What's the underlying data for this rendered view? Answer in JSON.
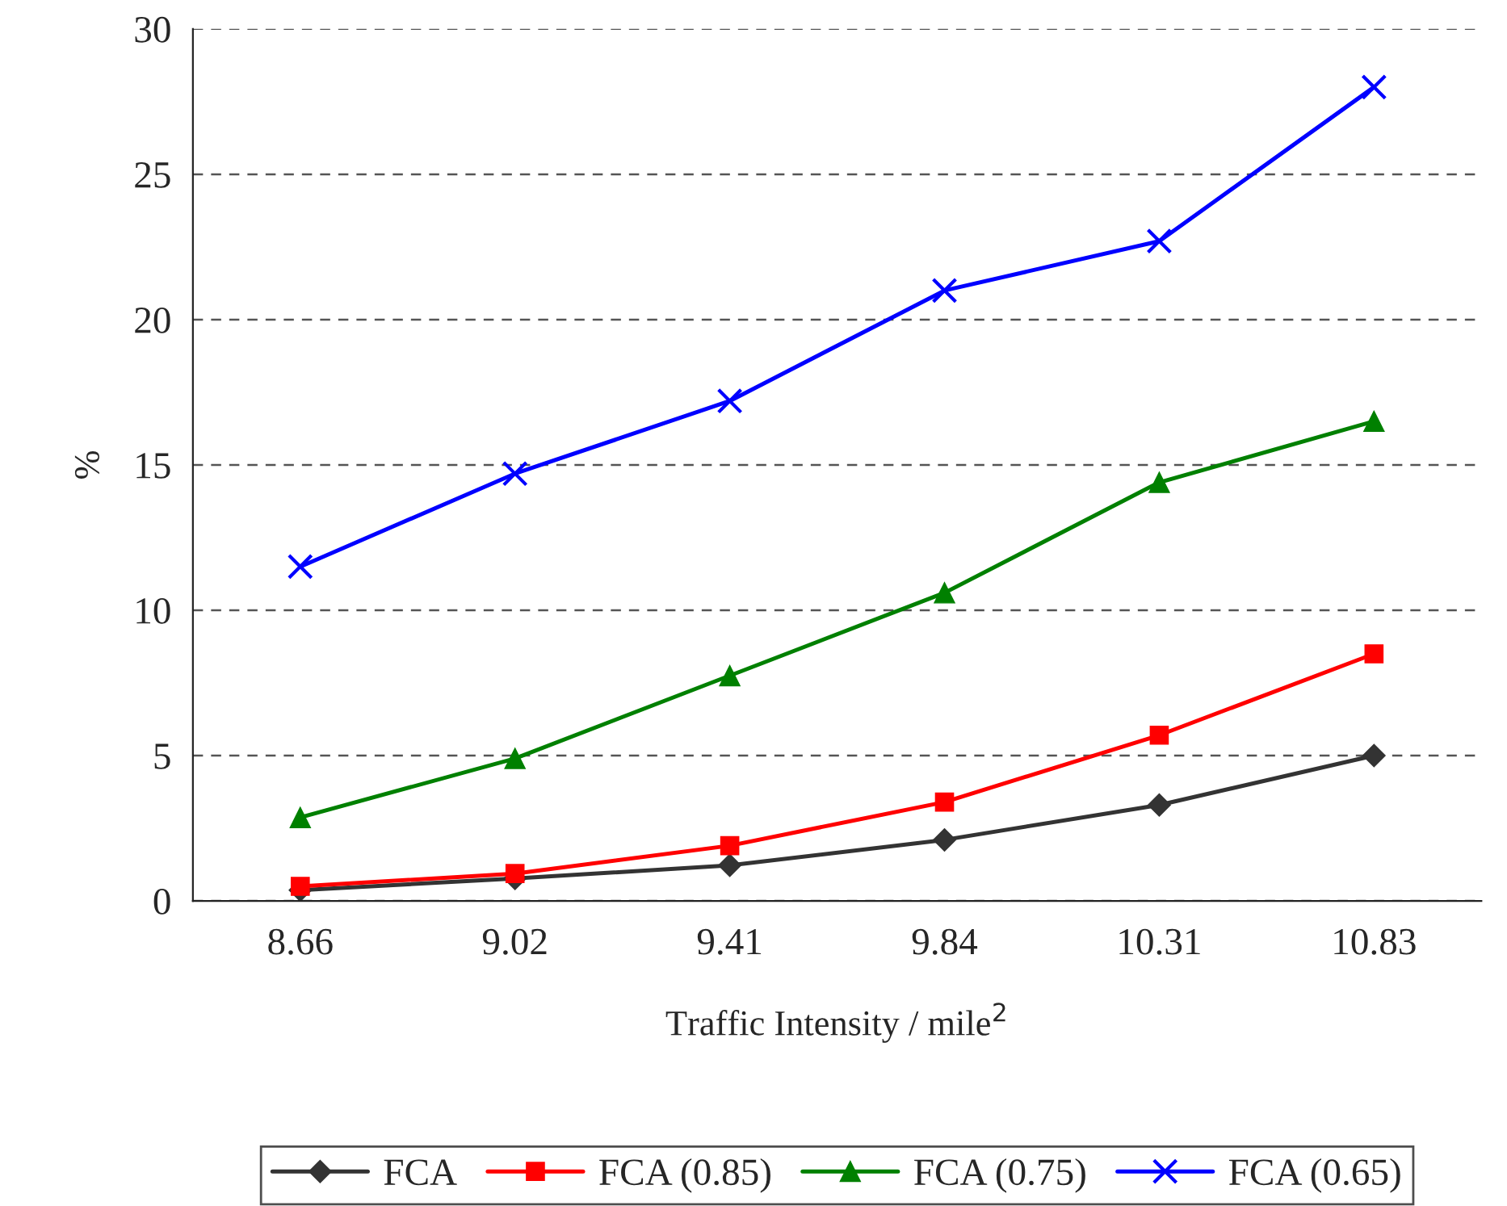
{
  "chart_data": {
    "type": "line",
    "xlabel": "Traffic Intensity / mile$^{2}$",
    "ylabel": "%",
    "categories": [
      "8.66",
      "9.02",
      "9.41",
      "9.84",
      "10.31",
      "10.83"
    ],
    "ylim": [
      0,
      30
    ],
    "yticks": [
      0,
      5,
      10,
      15,
      20,
      25,
      30
    ],
    "grid": "y",
    "legend": "bottom",
    "series": [
      {
        "name": "FCA",
        "color": "#333333",
        "marker": "diamond",
        "values": [
          0.37,
          0.77,
          1.22,
          2.1,
          3.3,
          5.0
        ]
      },
      {
        "name": "FCA (0.85)",
        "color": "#ff0000",
        "marker": "square",
        "values": [
          0.5,
          0.94,
          1.9,
          3.4,
          5.7,
          8.5
        ]
      },
      {
        "name": "FCA (0.75)",
        "color": "#008000",
        "marker": "triangle",
        "values": [
          2.87,
          4.9,
          7.75,
          10.6,
          14.4,
          16.5
        ]
      },
      {
        "name": "FCA (0.65)",
        "color": "#0000ff",
        "marker": "cross",
        "values": [
          11.5,
          14.7,
          17.2,
          21.0,
          22.7,
          28.0
        ]
      }
    ]
  }
}
